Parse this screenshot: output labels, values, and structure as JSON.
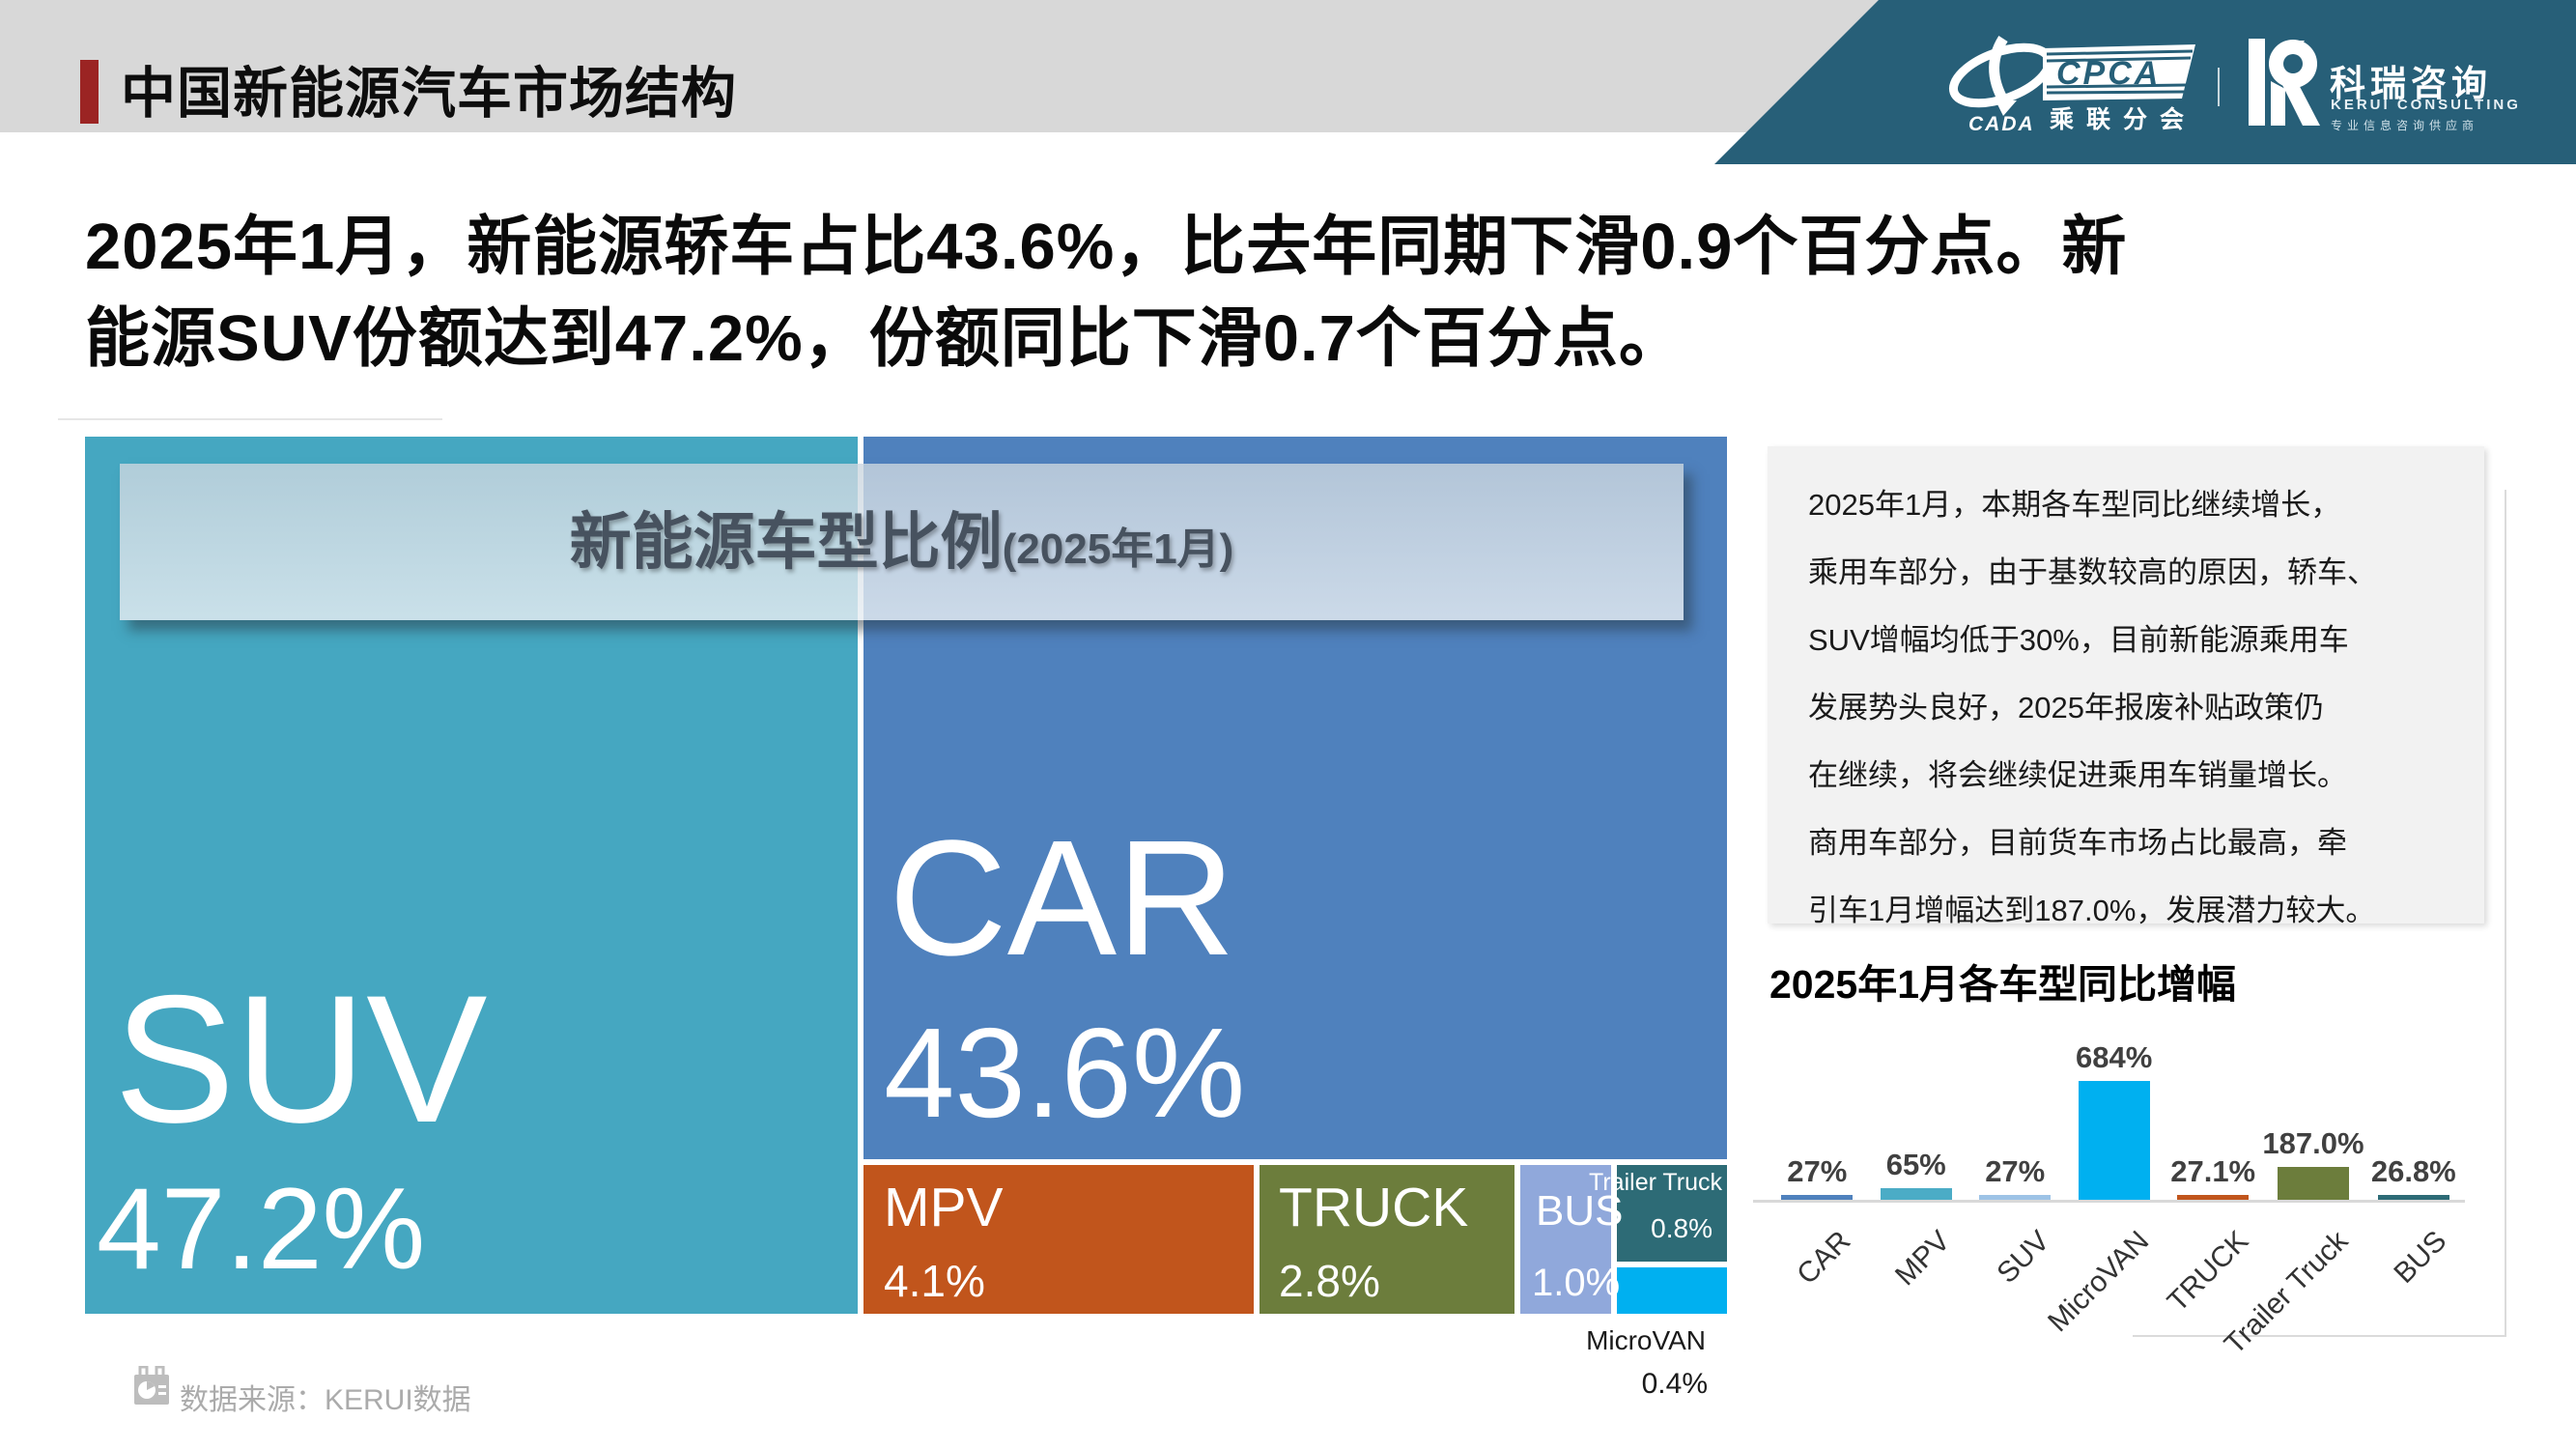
{
  "header": {
    "title": "中国新能源汽车市场结构",
    "cpca_logo": {
      "cada_text": "CADA",
      "cpca_text": "CPCA",
      "cpca_sub": "乘联分会"
    },
    "kerui_logo": {
      "name_cn": "科瑞咨询",
      "name_en": "KERUI CONSULTING",
      "tagline": "专业信息咨询供应商"
    }
  },
  "headline": {
    "text": "2025年1月，新能源轿车占比43.6%，比去年同期下滑0.9个百分点。新\n能源SUV份额达到47.2%，份额同比下滑0.7个百分点。"
  },
  "analysis": {
    "text": "2025年1月，本期各车型同比继续增长，\n乘用车部分，由于基数较高的原因，轿车、\nSUV增幅均低于30%，目前新能源乘用车\n发展势头良好，2025年报废补贴政策仍\n在继续，将会继续促进乘用车销量增长。\n商用车部分，目前货车市场占比最高，牵\n引车1月增幅达到187.0%，发展潜力较大。"
  },
  "footer": {
    "source": "数据来源：KERUI数据"
  },
  "chart_data": [
    {
      "type": "treemap",
      "title": "新能源车型比例",
      "title_suffix": "(2025年1月)",
      "items": [
        {
          "label": "SUV",
          "value": 47.2,
          "display": "47.2%",
          "color": "#45A7C1"
        },
        {
          "label": "CAR",
          "value": 43.6,
          "display": "43.6%",
          "color": "#4F81BD"
        },
        {
          "label": "MPV",
          "value": 4.1,
          "display": "4.1%",
          "color": "#C1551C"
        },
        {
          "label": "TRUCK",
          "value": 2.8,
          "display": "2.8%",
          "color": "#6C7D3C"
        },
        {
          "label": "BUS",
          "value": 1.0,
          "display": "1.0%",
          "color": "#90A8DB"
        },
        {
          "label": "Trailer Truck",
          "value": 0.8,
          "display": "0.8%",
          "color": "#2D6B76"
        },
        {
          "label": "MicroVAN",
          "value": 0.4,
          "display": "0.4%",
          "color": "#00B0F0"
        }
      ]
    },
    {
      "type": "bar",
      "title": "2025年1月各车型同比增幅",
      "categories": [
        "CAR",
        "MPV",
        "SUV",
        "MicroVAN",
        "TRUCK",
        "Trailer Truck",
        "BUS"
      ],
      "values": [
        27,
        65,
        27,
        684,
        27.1,
        187,
        26.8
      ],
      "labels": [
        "27%",
        "65%",
        "27%",
        "684%",
        "27.1%",
        "187.0%",
        "26.8%"
      ],
      "colors": [
        "#4F81BD",
        "#4BACC6",
        "#9DC3E6",
        "#00B0F0",
        "#C1551C",
        "#6C7D3C",
        "#2D6B76"
      ],
      "ylim": [
        0,
        700
      ],
      "grid": false,
      "legend": "none"
    }
  ]
}
